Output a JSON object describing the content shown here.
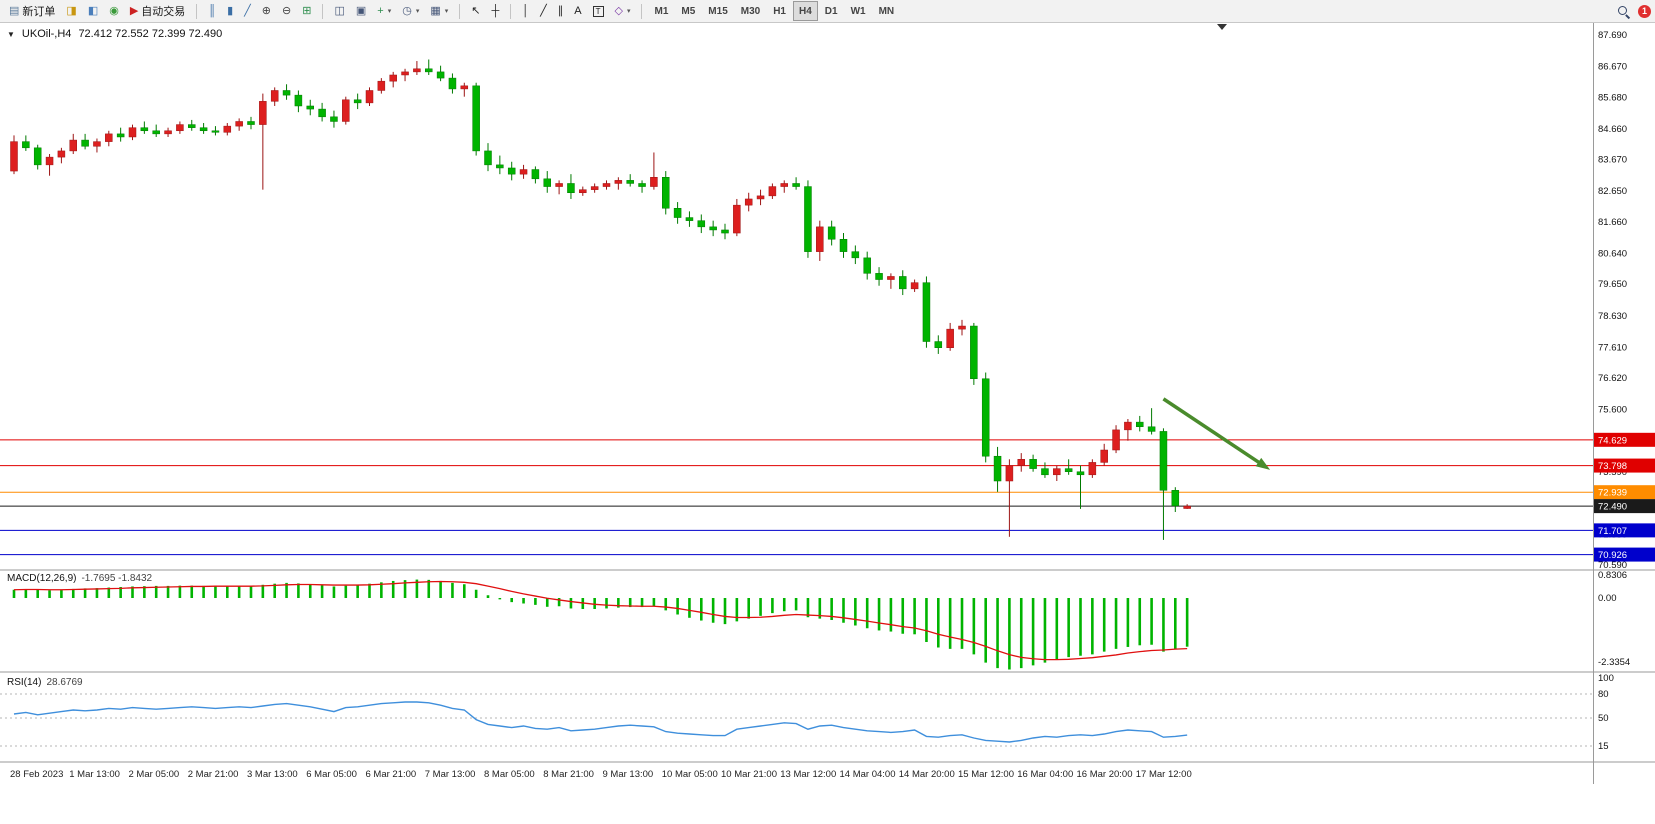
{
  "colors": {
    "candle_up": "#dd1f1f",
    "candle_down": "#00b400",
    "wick_up": "#9c1414",
    "wick_down": "#007a00",
    "macd_histogram": "#00b400",
    "macd_signal": "#e01010",
    "rsi_line": "#3f8fdc",
    "axis_text": "#111111",
    "panel_border": "#9a9a9a",
    "arrow": "#4a8b2c"
  },
  "toolbar": {
    "groups": [
      {
        "name": "trade-group",
        "items": [
          {
            "name": "new-order-button",
            "glyph": "▤",
            "glyph_color": "#5a7a9a",
            "label": "新订单"
          },
          {
            "name": "market-watch-icon",
            "glyph": "◨",
            "glyph_color": "#c89610"
          },
          {
            "name": "data-window-icon",
            "glyph": "◧",
            "glyph_color": "#4a7ebb"
          },
          {
            "name": "navigator-icon",
            "glyph": "◉",
            "glyph_color": "#3a9a3a"
          },
          {
            "name": "auto-trading-button",
            "glyph": "▶",
            "glyph_color": "#cc2222",
            "label": "自动交易"
          }
        ]
      },
      {
        "name": "chart-type-group",
        "items": [
          {
            "name": "bar-chart-icon",
            "glyph": "║",
            "glyph_color": "#3a6ea5"
          },
          {
            "name": "candlestick-chart-icon",
            "glyph": "▮",
            "glyph_color": "#3a6ea5"
          },
          {
            "name": "line-chart-icon",
            "glyph": "╱",
            "glyph_color": "#3a6ea5"
          },
          {
            "name": "zoom-in-icon",
            "glyph": "⊕",
            "glyph_color": "#444444"
          },
          {
            "name": "zoom-out-icon",
            "glyph": "⊖",
            "glyph_color": "#444444"
          },
          {
            "name": "grid-icon",
            "glyph": "⊞",
            "glyph_color": "#2f8f4f"
          }
        ]
      },
      {
        "name": "window-group",
        "items": [
          {
            "name": "indicators-icon",
            "glyph": "◫",
            "glyph_color": "#445577"
          },
          {
            "name": "arrange-windows-icon",
            "glyph": "▣",
            "glyph_color": "#445577"
          },
          {
            "name": "new-chart-button",
            "glyph": "+",
            "glyph_color": "#2f8f4f",
            "dropdown": true
          },
          {
            "name": "period-button",
            "glyph": "◷",
            "glyph_color": "#445577",
            "dropdown": true
          },
          {
            "name": "template-button",
            "glyph": "▦",
            "glyph_color": "#445577",
            "dropdown": true
          }
        ]
      },
      {
        "name": "cursor-group",
        "items": [
          {
            "name": "cursor-icon",
            "glyph": "↖",
            "glyph_color": "#222222"
          },
          {
            "name": "crosshair-icon",
            "glyph": "┼",
            "glyph_color": "#222222"
          }
        ]
      },
      {
        "name": "draw-group",
        "items": [
          {
            "name": "vertical-line-icon",
            "glyph": "│",
            "glyph_color": "#222222"
          },
          {
            "name": "trendline-icon",
            "glyph": "╱",
            "glyph_color": "#222222"
          },
          {
            "name": "equidistant-channel-icon",
            "glyph": "∥",
            "glyph_color": "#222222"
          },
          {
            "name": "text-icon",
            "glyph": "A",
            "glyph_color": "#222222"
          },
          {
            "name": "text-label-icon",
            "glyph": "T",
            "glyph_color": "#222222",
            "boxed": true
          },
          {
            "name": "arrows-button",
            "glyph": "◇",
            "glyph_color": "#7a3aa5",
            "dropdown": true
          }
        ]
      }
    ],
    "timeframes": {
      "items": [
        "M1",
        "M5",
        "M15",
        "M30",
        "H1",
        "H4",
        "D1",
        "W1",
        "MN"
      ],
      "active": "H4"
    },
    "right": [
      {
        "name": "search-icon",
        "type": "magnifier"
      },
      {
        "name": "notification-badge",
        "type": "badge",
        "label": "1",
        "bg": "#e03030"
      }
    ]
  },
  "chart": {
    "title_symbol": "UKOil-,H4",
    "title_quotes": "72.412 72.552 72.399 72.490"
  },
  "chart_data": {
    "type": "candlestick",
    "symbol": "UKOil-",
    "period": "H4",
    "ylim": [
      70.43,
      88.1
    ],
    "price_axis_labels": [
      "87.690",
      "86.670",
      "85.680",
      "84.660",
      "83.670",
      "82.650",
      "81.660",
      "80.640",
      "79.650",
      "78.630",
      "77.610",
      "76.620",
      "75.600",
      "73.590",
      "71.580",
      "70.590"
    ],
    "price_lines": [
      {
        "price": 74.629,
        "label": "74.629",
        "color": "#e00000"
      },
      {
        "price": 73.798,
        "label": "73.798",
        "color": "#e00000"
      },
      {
        "price": 72.939,
        "label": "72.939",
        "color": "#ff8c00"
      },
      {
        "price": 72.49,
        "label": "72.490",
        "color": "#1a1a1a"
      },
      {
        "price": 71.707,
        "label": "71.707",
        "color": "#0000cc"
      },
      {
        "price": 70.926,
        "label": "70.926",
        "color": "#0000cc"
      }
    ],
    "time_labels": [
      "28 Feb 2023",
      "1 Mar 13:00",
      "2 Mar 05:00",
      "2 Mar 21:00",
      "3 Mar 13:00",
      "6 Mar 05:00",
      "6 Mar 21:00",
      "7 Mar 13:00",
      "8 Mar 05:00",
      "8 Mar 21:00",
      "9 Mar 13:00",
      "10 Mar 05:00",
      "10 Mar 21:00",
      "13 Mar 12:00",
      "14 Mar 04:00",
      "14 Mar 20:00",
      "15 Mar 12:00",
      "16 Mar 04:00",
      "16 Mar 20:00",
      "17 Mar 12:00"
    ],
    "candles": [
      [
        83.3,
        84.45,
        83.2,
        84.25
      ],
      [
        84.25,
        84.45,
        83.95,
        84.05
      ],
      [
        84.05,
        84.15,
        83.35,
        83.5
      ],
      [
        83.5,
        83.85,
        83.15,
        83.75
      ],
      [
        83.75,
        84.05,
        83.55,
        83.95
      ],
      [
        83.95,
        84.5,
        83.85,
        84.3
      ],
      [
        84.3,
        84.5,
        84.0,
        84.1
      ],
      [
        84.1,
        84.35,
        83.9,
        84.25
      ],
      [
        84.25,
        84.6,
        84.1,
        84.5
      ],
      [
        84.5,
        84.7,
        84.25,
        84.4
      ],
      [
        84.4,
        84.8,
        84.3,
        84.7
      ],
      [
        84.7,
        84.9,
        84.5,
        84.6
      ],
      [
        84.6,
        84.8,
        84.4,
        84.5
      ],
      [
        84.5,
        84.7,
        84.4,
        84.6
      ],
      [
        84.6,
        84.9,
        84.5,
        84.8
      ],
      [
        84.8,
        84.95,
        84.6,
        84.7
      ],
      [
        84.7,
        84.85,
        84.5,
        84.6
      ],
      [
        84.6,
        84.75,
        84.45,
        84.55
      ],
      [
        84.55,
        84.85,
        84.45,
        84.75
      ],
      [
        84.75,
        85.0,
        84.6,
        84.9
      ],
      [
        84.9,
        85.05,
        84.65,
        84.8
      ],
      [
        84.8,
        85.8,
        82.7,
        85.55
      ],
      [
        85.55,
        86.0,
        85.4,
        85.9
      ],
      [
        85.9,
        86.1,
        85.6,
        85.75
      ],
      [
        85.75,
        85.9,
        85.2,
        85.4
      ],
      [
        85.4,
        85.6,
        85.1,
        85.3
      ],
      [
        85.3,
        85.5,
        84.9,
        85.05
      ],
      [
        85.05,
        85.25,
        84.7,
        84.9
      ],
      [
        84.9,
        85.7,
        84.8,
        85.6
      ],
      [
        85.6,
        85.8,
        85.3,
        85.5
      ],
      [
        85.5,
        86.0,
        85.4,
        85.9
      ],
      [
        85.9,
        86.3,
        85.8,
        86.2
      ],
      [
        86.2,
        86.5,
        86.0,
        86.4
      ],
      [
        86.4,
        86.6,
        86.2,
        86.5
      ],
      [
        86.5,
        86.85,
        86.4,
        86.6
      ],
      [
        86.6,
        86.9,
        86.4,
        86.5
      ],
      [
        86.5,
        86.7,
        86.2,
        86.3
      ],
      [
        86.3,
        86.45,
        85.8,
        85.95
      ],
      [
        85.95,
        86.15,
        85.7,
        86.05
      ],
      [
        86.05,
        86.15,
        83.8,
        83.95
      ],
      [
        83.95,
        84.2,
        83.3,
        83.5
      ],
      [
        83.5,
        83.8,
        83.2,
        83.4
      ],
      [
        83.4,
        83.6,
        83.0,
        83.2
      ],
      [
        83.2,
        83.5,
        83.05,
        83.35
      ],
      [
        83.35,
        83.45,
        82.9,
        83.05
      ],
      [
        83.05,
        83.3,
        82.6,
        82.8
      ],
      [
        82.8,
        83.0,
        82.55,
        82.9
      ],
      [
        82.9,
        83.2,
        82.4,
        82.6
      ],
      [
        82.6,
        82.8,
        82.5,
        82.7
      ],
      [
        82.7,
        82.9,
        82.6,
        82.8
      ],
      [
        82.8,
        83.0,
        82.7,
        82.9
      ],
      [
        82.9,
        83.1,
        82.7,
        83.0
      ],
      [
        83.0,
        83.2,
        82.8,
        82.9
      ],
      [
        82.9,
        83.0,
        82.6,
        82.8
      ],
      [
        82.8,
        83.9,
        82.7,
        83.1
      ],
      [
        83.1,
        83.3,
        81.9,
        82.1
      ],
      [
        82.1,
        82.3,
        81.6,
        81.8
      ],
      [
        81.8,
        82.0,
        81.5,
        81.7
      ],
      [
        81.7,
        81.9,
        81.3,
        81.5
      ],
      [
        81.5,
        81.7,
        81.2,
        81.4
      ],
      [
        81.4,
        81.6,
        81.1,
        81.3
      ],
      [
        81.3,
        82.4,
        81.2,
        82.2
      ],
      [
        82.2,
        82.6,
        82.0,
        82.4
      ],
      [
        82.4,
        82.7,
        82.2,
        82.5
      ],
      [
        82.5,
        82.9,
        82.4,
        82.8
      ],
      [
        82.8,
        83.0,
        82.6,
        82.9
      ],
      [
        82.9,
        83.1,
        82.7,
        82.8
      ],
      [
        82.8,
        83.0,
        80.5,
        80.7
      ],
      [
        80.7,
        81.7,
        80.4,
        81.5
      ],
      [
        81.5,
        81.7,
        80.9,
        81.1
      ],
      [
        81.1,
        81.3,
        80.5,
        80.7
      ],
      [
        80.7,
        80.9,
        80.3,
        80.5
      ],
      [
        80.5,
        80.7,
        79.8,
        80.0
      ],
      [
        80.0,
        80.2,
        79.6,
        79.8
      ],
      [
        79.8,
        80.0,
        79.5,
        79.9
      ],
      [
        79.9,
        80.1,
        79.3,
        79.5
      ],
      [
        79.5,
        79.8,
        79.4,
        79.7
      ],
      [
        79.7,
        79.9,
        77.6,
        77.8
      ],
      [
        77.8,
        78.0,
        77.4,
        77.6
      ],
      [
        77.6,
        78.4,
        77.5,
        78.2
      ],
      [
        78.2,
        78.5,
        78.0,
        78.3
      ],
      [
        78.3,
        78.4,
        76.4,
        76.6
      ],
      [
        76.6,
        76.8,
        73.9,
        74.1
      ],
      [
        74.1,
        74.4,
        72.95,
        73.3
      ],
      [
        73.3,
        74.0,
        71.5,
        73.8
      ],
      [
        73.8,
        74.2,
        73.6,
        74.0
      ],
      [
        74.0,
        74.15,
        73.6,
        73.7
      ],
      [
        73.7,
        73.9,
        73.4,
        73.5
      ],
      [
        73.5,
        73.8,
        73.3,
        73.7
      ],
      [
        73.7,
        74.0,
        73.5,
        73.6
      ],
      [
        73.6,
        73.8,
        72.4,
        73.5
      ],
      [
        73.5,
        74.0,
        73.4,
        73.9
      ],
      [
        73.9,
        74.5,
        73.8,
        74.3
      ],
      [
        74.3,
        75.1,
        74.2,
        74.95
      ],
      [
        74.95,
        75.3,
        74.6,
        75.2
      ],
      [
        75.2,
        75.4,
        74.9,
        75.05
      ],
      [
        75.05,
        75.65,
        74.8,
        74.9
      ],
      [
        74.9,
        75.0,
        71.4,
        73.0
      ],
      [
        73.0,
        73.1,
        72.3,
        72.5
      ],
      [
        72.412,
        72.552,
        72.399,
        72.49
      ]
    ],
    "arrow": {
      "start_candle": 97,
      "start_price": 75.95,
      "end_candle": 106,
      "end_price": 73.66,
      "color": "#4a8b2c"
    },
    "macd": {
      "label": "MACD(12,26,9)",
      "values_text": "-1.7695 -1.8432",
      "axis_labels": [
        "0.8306",
        "0.00",
        "-2.3354"
      ],
      "histogram": [
        0.3,
        0.32,
        0.3,
        0.28,
        0.3,
        0.33,
        0.35,
        0.36,
        0.38,
        0.4,
        0.42,
        0.43,
        0.44,
        0.44,
        0.45,
        0.45,
        0.44,
        0.43,
        0.43,
        0.44,
        0.45,
        0.48,
        0.52,
        0.55,
        0.53,
        0.5,
        0.46,
        0.42,
        0.45,
        0.48,
        0.52,
        0.57,
        0.62,
        0.65,
        0.67,
        0.66,
        0.62,
        0.55,
        0.5,
        0.3,
        0.1,
        -0.05,
        -0.15,
        -0.2,
        -0.25,
        -0.32,
        -0.3,
        -0.38,
        -0.4,
        -0.4,
        -0.38,
        -0.35,
        -0.33,
        -0.33,
        -0.3,
        -0.45,
        -0.6,
        -0.72,
        -0.82,
        -0.9,
        -0.95,
        -0.85,
        -0.75,
        -0.65,
        -0.55,
        -0.48,
        -0.45,
        -0.7,
        -0.75,
        -0.8,
        -0.9,
        -1.0,
        -1.1,
        -1.18,
        -1.22,
        -1.3,
        -1.32,
        -1.6,
        -1.8,
        -1.85,
        -1.85,
        -2.05,
        -2.35,
        -2.55,
        -2.6,
        -2.55,
        -2.45,
        -2.35,
        -2.25,
        -2.15,
        -2.1,
        -2.05,
        -1.95,
        -1.85,
        -1.78,
        -1.72,
        -1.7,
        -1.95,
        -1.85,
        -1.77
      ],
      "signal": [
        0.3,
        0.31,
        0.31,
        0.3,
        0.3,
        0.31,
        0.32,
        0.33,
        0.34,
        0.35,
        0.37,
        0.38,
        0.39,
        0.4,
        0.41,
        0.42,
        0.42,
        0.43,
        0.43,
        0.43,
        0.43,
        0.44,
        0.46,
        0.48,
        0.49,
        0.49,
        0.48,
        0.47,
        0.47,
        0.47,
        0.48,
        0.5,
        0.52,
        0.55,
        0.57,
        0.59,
        0.6,
        0.59,
        0.57,
        0.52,
        0.43,
        0.34,
        0.24,
        0.15,
        0.07,
        -0.01,
        -0.07,
        -0.13,
        -0.18,
        -0.23,
        -0.26,
        -0.28,
        -0.29,
        -0.3,
        -0.3,
        -0.33,
        -0.38,
        -0.45,
        -0.52,
        -0.6,
        -0.67,
        -0.71,
        -0.71,
        -0.7,
        -0.67,
        -0.63,
        -0.6,
        -0.62,
        -0.64,
        -0.67,
        -0.72,
        -0.78,
        -0.84,
        -0.91,
        -0.97,
        -1.04,
        -1.09,
        -1.19,
        -1.32,
        -1.42,
        -1.51,
        -1.62,
        -1.76,
        -1.92,
        -2.06,
        -2.16,
        -2.21,
        -2.24,
        -2.24,
        -2.23,
        -2.2,
        -2.17,
        -2.12,
        -2.07,
        -2.0,
        -1.95,
        -1.91,
        -1.89,
        -1.86,
        -1.84
      ]
    },
    "rsi": {
      "label": "RSI(14)",
      "value_text": "28.6769",
      "axis_labels": [
        "100",
        "80",
        "50",
        "15"
      ],
      "levels": [
        80,
        50,
        15
      ],
      "values": [
        55,
        57,
        54,
        56,
        58,
        60,
        59,
        60,
        62,
        61,
        63,
        62,
        61,
        62,
        63,
        64,
        63,
        62,
        63,
        64,
        63,
        65,
        67,
        68,
        66,
        64,
        61,
        58,
        63,
        64,
        66,
        68,
        69,
        70,
        70,
        69,
        66,
        62,
        60,
        48,
        42,
        40,
        38,
        40,
        37,
        36,
        38,
        34,
        35,
        36,
        38,
        40,
        41,
        40,
        39,
        33,
        31,
        30,
        29,
        28,
        28,
        36,
        38,
        40,
        42,
        44,
        43,
        36,
        40,
        41,
        38,
        36,
        34,
        33,
        32,
        33,
        35,
        27,
        26,
        28,
        29,
        25,
        22,
        21,
        20,
        22,
        25,
        27,
        26,
        28,
        29,
        28,
        30,
        33,
        35,
        34,
        33,
        26,
        27,
        28.7
      ]
    }
  }
}
